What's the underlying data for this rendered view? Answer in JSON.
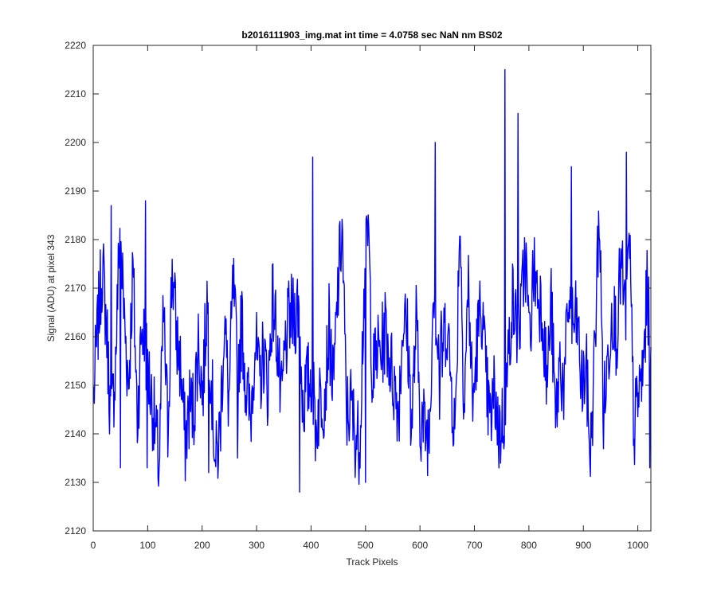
{
  "chart_data": {
    "type": "line",
    "title": "b2016111903_img.mat int time = 4.0758 sec  NaN nm BS02",
    "xlabel": "Track Pixels",
    "ylabel": "Signal (ADU) at pixel 343",
    "xlim": [
      0,
      1024
    ],
    "ylim": [
      2120,
      2220
    ],
    "xticks": [
      0,
      100,
      200,
      300,
      400,
      500,
      600,
      700,
      800,
      900,
      1000
    ],
    "yticks": [
      2120,
      2130,
      2140,
      2150,
      2160,
      2170,
      2180,
      2190,
      2200,
      2210,
      2220
    ],
    "grid": false,
    "series_color": "#0000ff",
    "series": [
      {
        "step": 8,
        "values": [
          2148,
          2163,
          2175,
          2161,
          2141,
          2155,
          2183,
          2164,
          2150,
          2174,
          2143,
          2162,
          2157,
          2149,
          2142,
          2133,
          2165,
          2141,
          2175,
          2160,
          2153,
          2138,
          2146,
          2145,
          2159,
          2148,
          2168,
          2151,
          2133,
          2141,
          2164,
          2146,
          2171,
          2152,
          2163,
          2149,
          2143,
          2160,
          2150,
          2157,
          2149,
          2168,
          2161,
          2145,
          2158,
          2164,
          2164,
          2167,
          2146,
          2150,
          2152,
          2141,
          2148,
          2148,
          2162,
          2149,
          2169,
          2183,
          2144,
          2146,
          2140,
          2138,
          2168,
          2183,
          2151,
          2157,
          2157,
          2162,
          2155,
          2150,
          2145,
          2164,
          2160,
          2142,
          2163,
          2143,
          2141,
          2140,
          2173,
          2157,
          2157,
          2164,
          2151,
          2140,
          2186,
          2147,
          2171,
          2145,
          2159,
          2167,
          2151,
          2142,
          2149,
          2140,
          2143,
          2153,
          2168,
          2162,
          2163,
          2178,
          2159,
          2174,
          2169,
          2166,
          2150,
          2167,
          2142,
          2155,
          2149,
          2168,
          2162,
          2163,
          2149,
          2154,
          2135,
          2157,
          2187,
          2144,
          2155,
          2167,
          2160,
          2175,
          2164,
          2178,
          2140,
          2148,
          2152,
          2169,
          2158,
          2174,
          2166,
          2152,
          2156,
          2164,
          2174,
          2178,
          2159,
          2172,
          2173,
          2185,
          2165,
          2172,
          2176,
          2164,
          2178,
          2170,
          2152,
          2158,
          2163,
          2179,
          2171,
          2145,
          2157,
          2170,
          2162,
          2167,
          2167,
          2177,
          2156,
          2181,
          2165,
          2158,
          2178,
          2153,
          2170,
          2172,
          2167,
          2173,
          2182,
          2168,
          2162,
          2182,
          2182,
          2163,
          2183,
          2172,
          2175,
          2162,
          2160,
          2175,
          2184,
          2182,
          2166,
          2164,
          2173,
          2183,
          2185,
          2168,
          2149,
          2162,
          2169,
          2170,
          2176,
          2173,
          2166,
          2163,
          2155,
          2160,
          2174,
          2163,
          2172,
          2179,
          2165,
          2172,
          2173,
          2172,
          2173,
          2151,
          2150,
          2171,
          2184,
          2174,
          2168,
          2169,
          2171,
          2166,
          2188,
          2166,
          2176,
          2163,
          2166,
          2174,
          2166,
          2169,
          2153,
          2169,
          2168,
          2165,
          2159,
          2171,
          2173,
          2162,
          2153,
          2176,
          2184,
          2174,
          2167,
          2170,
          2160,
          2178,
          2173,
          2170,
          2161,
          2170,
          2177,
          2170,
          2180,
          2164,
          2171,
          2162,
          2170,
          2177,
          2182,
          2178,
          2160,
          2162,
          2176,
          2157,
          2173,
          2176,
          2176,
          2166,
          2172,
          2174,
          2168,
          2166,
          2162,
          2161,
          2178,
          2168,
          2171,
          2171,
          2159,
          2174,
          2133
        ]
      }
    ],
    "spikes": [
      {
        "x": 33,
        "y": 2187
      },
      {
        "x": 50,
        "y": 2133
      },
      {
        "x": 96,
        "y": 2188
      },
      {
        "x": 99,
        "y": 2133
      },
      {
        "x": 212,
        "y": 2132
      },
      {
        "x": 265,
        "y": 2135
      },
      {
        "x": 379,
        "y": 2128
      },
      {
        "x": 403,
        "y": 2197
      },
      {
        "x": 500,
        "y": 2130
      },
      {
        "x": 628,
        "y": 2200
      },
      {
        "x": 636,
        "y": 2143
      },
      {
        "x": 756,
        "y": 2215
      },
      {
        "x": 780,
        "y": 2206
      },
      {
        "x": 878,
        "y": 2195
      },
      {
        "x": 979,
        "y": 2198
      },
      {
        "x": 1022,
        "y": 2133
      }
    ]
  }
}
